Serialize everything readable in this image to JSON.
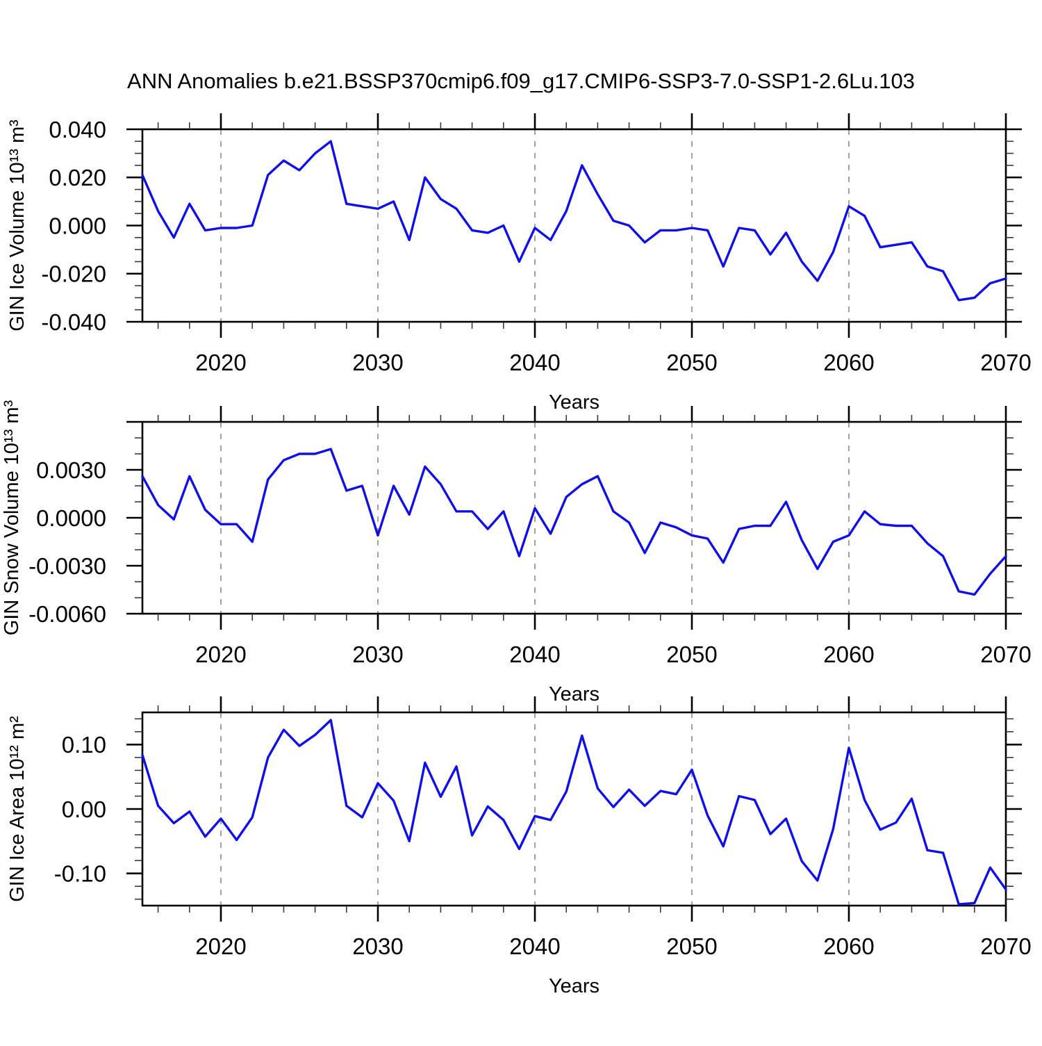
{
  "title": "ANN Anomalies b.e21.BSSP370cmip6.f09_g17.CMIP6-SSP3-7.0-SSP1-2.6Lu.103",
  "colors": {
    "series_line": "#0f10e8",
    "gridline": "#8a8a8a",
    "axis": "#000000",
    "background": "#ffffff"
  },
  "chart_data": [
    {
      "type": "line",
      "title": "",
      "ylabel": "GIN Ice Volume 10¹³ m³",
      "xlabel": "Years",
      "legend": "none",
      "grid": "vertical-dashed",
      "xlim": [
        2015,
        2070
      ],
      "ylim": [
        -0.04,
        0.04
      ],
      "x_minor_step": 2,
      "y_minor_step": 0.005,
      "y_major_step": 0.02,
      "gridlines": [
        2020,
        2030,
        2040,
        2050,
        2060
      ],
      "xticks": [
        {
          "v": 2020,
          "label": "2020"
        },
        {
          "v": 2030,
          "label": "2030"
        },
        {
          "v": 2040,
          "label": "2040"
        },
        {
          "v": 2050,
          "label": "2050"
        },
        {
          "v": 2060,
          "label": "2060"
        },
        {
          "v": 2070,
          "label": "2070"
        }
      ],
      "yticks": [
        {
          "v": 0.04,
          "label": "0.040"
        },
        {
          "v": 0.02,
          "label": "0.020"
        },
        {
          "v": 0.0,
          "label": "0.000"
        },
        {
          "v": -0.02,
          "label": "-0.020"
        },
        {
          "v": -0.04,
          "label": "-0.040"
        }
      ],
      "x": [
        2015,
        2016,
        2017,
        2018,
        2019,
        2020,
        2021,
        2022,
        2023,
        2024,
        2025,
        2026,
        2027,
        2028,
        2029,
        2030,
        2031,
        2032,
        2033,
        2034,
        2035,
        2036,
        2037,
        2038,
        2039,
        2040,
        2041,
        2042,
        2043,
        2044,
        2045,
        2046,
        2047,
        2048,
        2049,
        2050,
        2051,
        2052,
        2053,
        2054,
        2055,
        2056,
        2057,
        2058,
        2059,
        2060,
        2061,
        2062,
        2063,
        2064,
        2065,
        2066,
        2067,
        2068,
        2069,
        2070
      ],
      "values": [
        0.021,
        0.006,
        -0.005,
        0.009,
        -0.002,
        -0.001,
        -0.001,
        0.0,
        0.021,
        0.027,
        0.023,
        0.03,
        0.035,
        0.009,
        0.008,
        0.007,
        0.01,
        -0.006,
        0.02,
        0.011,
        0.007,
        -0.002,
        -0.003,
        0.0,
        -0.015,
        -0.001,
        -0.006,
        0.006,
        0.025,
        0.013,
        0.002,
        0.0,
        -0.007,
        -0.002,
        -0.002,
        -0.001,
        -0.002,
        -0.017,
        -0.001,
        -0.002,
        -0.012,
        -0.003,
        -0.015,
        -0.023,
        -0.011,
        0.008,
        0.004,
        -0.009,
        -0.008,
        -0.007,
        -0.017,
        -0.019,
        -0.031,
        -0.03,
        -0.024,
        -0.022
      ]
    },
    {
      "type": "line",
      "title": "",
      "ylabel": "GIN Snow Volume 10¹³ m³",
      "xlabel": "Years",
      "legend": "none",
      "grid": "vertical-dashed",
      "xlim": [
        2015,
        2070
      ],
      "ylim": [
        -0.006,
        0.006
      ],
      "x_minor_step": 2,
      "y_minor_step": 0.001,
      "y_major_step": 0.003,
      "gridlines": [
        2020,
        2030,
        2040,
        2050,
        2060
      ],
      "xticks": [
        {
          "v": 2020,
          "label": "2020"
        },
        {
          "v": 2030,
          "label": "2030"
        },
        {
          "v": 2040,
          "label": "2040"
        },
        {
          "v": 2050,
          "label": "2050"
        },
        {
          "v": 2060,
          "label": "2060"
        },
        {
          "v": 2070,
          "label": "2070"
        }
      ],
      "yticks": [
        {
          "v": 0.003,
          "label": "0.0030"
        },
        {
          "v": 0.0,
          "label": "0.0000"
        },
        {
          "v": -0.003,
          "label": "-0.0030"
        },
        {
          "v": -0.006,
          "label": "-0.0060"
        }
      ],
      "x": [
        2015,
        2016,
        2017,
        2018,
        2019,
        2020,
        2021,
        2022,
        2023,
        2024,
        2025,
        2026,
        2027,
        2028,
        2029,
        2030,
        2031,
        2032,
        2033,
        2034,
        2035,
        2036,
        2037,
        2038,
        2039,
        2040,
        2041,
        2042,
        2043,
        2044,
        2045,
        2046,
        2047,
        2048,
        2049,
        2050,
        2051,
        2052,
        2053,
        2054,
        2055,
        2056,
        2057,
        2058,
        2059,
        2060,
        2061,
        2062,
        2063,
        2064,
        2065,
        2066,
        2067,
        2068,
        2069,
        2070
      ],
      "values": [
        0.0026,
        0.0008,
        -0.0001,
        0.0026,
        0.0005,
        -0.0004,
        -0.0004,
        -0.0015,
        0.0024,
        0.0036,
        0.004,
        0.004,
        0.0043,
        0.0017,
        0.002,
        -0.0011,
        0.002,
        0.0002,
        0.0032,
        0.0021,
        0.0004,
        0.0004,
        -0.0007,
        0.0004,
        -0.0024,
        0.0006,
        -0.001,
        0.0013,
        0.0021,
        0.0026,
        0.0004,
        -0.0003,
        -0.0022,
        -0.0003,
        -0.0006,
        -0.0011,
        -0.0013,
        -0.0028,
        -0.0007,
        -0.0005,
        -0.0005,
        0.001,
        -0.0014,
        -0.0032,
        -0.0015,
        -0.0011,
        0.0004,
        -0.0004,
        -0.0005,
        -0.0005,
        -0.0016,
        -0.0024,
        -0.0046,
        -0.0048,
        -0.0035,
        -0.0024
      ]
    },
    {
      "type": "line",
      "title": "",
      "ylabel": "GIN Ice Area 10¹² m²",
      "xlabel": "Years",
      "legend": "none",
      "grid": "vertical-dashed",
      "xlim": [
        2015,
        2070
      ],
      "ylim": [
        -0.15,
        0.15
      ],
      "x_minor_step": 2,
      "y_minor_step": 0.02,
      "y_major_step": 0.1,
      "gridlines": [
        2020,
        2030,
        2040,
        2050,
        2060
      ],
      "xticks": [
        {
          "v": 2020,
          "label": "2020"
        },
        {
          "v": 2030,
          "label": "2030"
        },
        {
          "v": 2040,
          "label": "2040"
        },
        {
          "v": 2050,
          "label": "2050"
        },
        {
          "v": 2060,
          "label": "2060"
        },
        {
          "v": 2070,
          "label": "2070"
        }
      ],
      "yticks": [
        {
          "v": 0.1,
          "label": "0.10"
        },
        {
          "v": 0.0,
          "label": "0.00"
        },
        {
          "v": -0.1,
          "label": "-0.10"
        }
      ],
      "x": [
        2015,
        2016,
        2017,
        2018,
        2019,
        2020,
        2021,
        2022,
        2023,
        2024,
        2025,
        2026,
        2027,
        2028,
        2029,
        2030,
        2031,
        2032,
        2033,
        2034,
        2035,
        2036,
        2037,
        2038,
        2039,
        2040,
        2041,
        2042,
        2043,
        2044,
        2045,
        2046,
        2047,
        2048,
        2049,
        2050,
        2051,
        2052,
        2053,
        2054,
        2055,
        2056,
        2057,
        2058,
        2059,
        2060,
        2061,
        2062,
        2063,
        2064,
        2065,
        2066,
        2067,
        2068,
        2069,
        2070
      ],
      "values": [
        0.084,
        0.005,
        -0.022,
        -0.004,
        -0.043,
        -0.015,
        -0.048,
        -0.013,
        0.08,
        0.123,
        0.098,
        0.115,
        0.138,
        0.005,
        -0.013,
        0.04,
        0.013,
        -0.05,
        0.072,
        0.019,
        0.066,
        -0.041,
        0.004,
        -0.017,
        -0.062,
        -0.011,
        -0.017,
        0.027,
        0.114,
        0.032,
        0.003,
        0.03,
        0.005,
        0.028,
        0.023,
        0.061,
        -0.01,
        -0.058,
        0.02,
        0.014,
        -0.039,
        -0.015,
        -0.081,
        -0.111,
        -0.031,
        0.095,
        0.014,
        -0.032,
        -0.021,
        0.016,
        -0.064,
        -0.068,
        -0.148,
        -0.146,
        -0.091,
        -0.125
      ]
    }
  ]
}
